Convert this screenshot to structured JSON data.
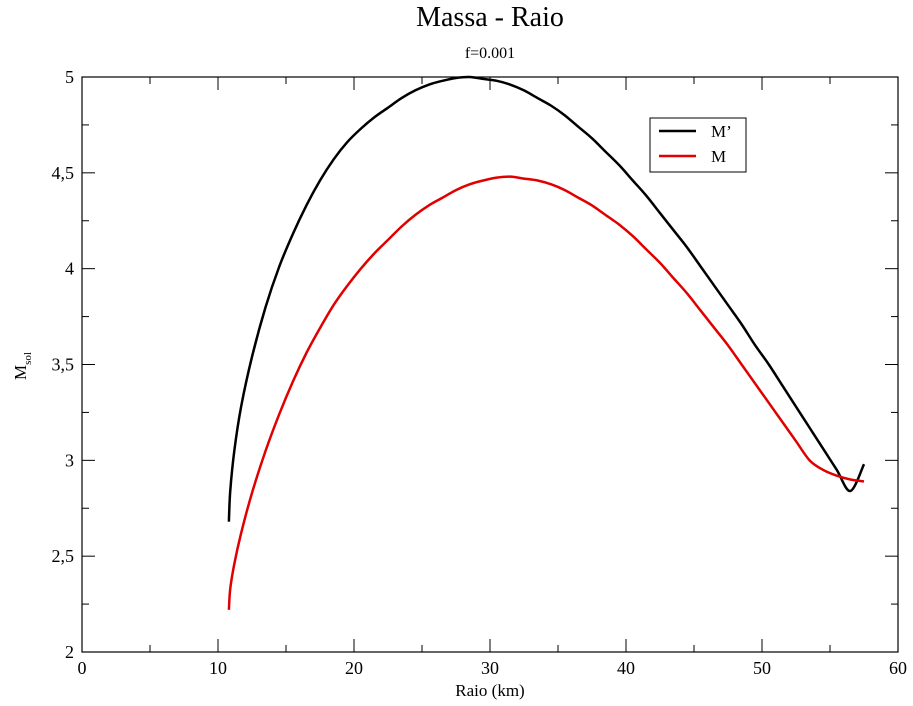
{
  "chart_data": {
    "type": "line",
    "title": "Massa - Raio",
    "subtitle": "f=0.001",
    "xlabel": "Raio (km)",
    "ylabel_main": "M",
    "ylabel_sub": "sol",
    "xlim": [
      0,
      60
    ],
    "ylim": [
      2,
      5
    ],
    "x_ticks": [
      0,
      10,
      20,
      30,
      40,
      50,
      60
    ],
    "x_tick_labels": [
      "0",
      "10",
      "20",
      "30",
      "40",
      "50",
      "60"
    ],
    "y_ticks": [
      2,
      2.5,
      3,
      3.5,
      4,
      4.5,
      5
    ],
    "y_tick_labels": [
      "2",
      "2,5",
      "3",
      "3,5",
      "4",
      "4,5",
      "5"
    ],
    "grid": false,
    "legend_position": "top-right",
    "series": [
      {
        "name": "M’",
        "color": "#000000",
        "x": [
          10.8,
          10.9,
          11.2,
          11.7,
          12.5,
          13.5,
          14.5,
          15.5,
          16.5,
          17.5,
          18.5,
          19.5,
          20.5,
          21.5,
          22.5,
          23.5,
          24.5,
          25.5,
          26.5,
          27.5,
          28.5,
          29.5,
          30.5,
          31.5,
          32.5,
          33.5,
          34.5,
          35.5,
          36.5,
          37.5,
          38.5,
          39.5,
          40.5,
          41.5,
          42.5,
          43.5,
          44.5,
          45.5,
          46.5,
          47.5,
          48.5,
          49.5,
          50.5,
          51.5,
          52.5,
          53.5,
          54.5,
          55.5,
          56.5,
          57.5
        ],
        "y": [
          2.68,
          2.84,
          3.05,
          3.28,
          3.54,
          3.8,
          4.01,
          4.18,
          4.33,
          4.46,
          4.57,
          4.66,
          4.73,
          4.79,
          4.84,
          4.89,
          4.93,
          4.96,
          4.98,
          4.995,
          5.0,
          4.99,
          4.98,
          4.96,
          4.93,
          4.89,
          4.85,
          4.8,
          4.74,
          4.68,
          4.61,
          4.54,
          4.46,
          4.38,
          4.29,
          4.2,
          4.11,
          4.01,
          3.91,
          3.81,
          3.71,
          3.6,
          3.5,
          3.39,
          3.28,
          3.17,
          3.06,
          2.95,
          2.84,
          2.98
        ]
      },
      {
        "name": "M",
        "color": "#e00000",
        "x": [
          10.8,
          10.9,
          11.2,
          11.7,
          12.5,
          13.5,
          14.5,
          15.5,
          16.5,
          17.5,
          18.5,
          19.5,
          20.5,
          21.5,
          22.5,
          23.5,
          24.5,
          25.5,
          26.5,
          27.5,
          28.5,
          29.5,
          30.5,
          31.5,
          32.5,
          33.5,
          34.5,
          35.5,
          36.5,
          37.5,
          38.5,
          39.5,
          40.5,
          41.5,
          42.5,
          43.5,
          44.5,
          45.5,
          46.5,
          47.5,
          48.5,
          49.5,
          50.5,
          51.5,
          52.5,
          53.5,
          54.5,
          55.5,
          56.5,
          57.5
        ],
        "y": [
          2.22,
          2.33,
          2.46,
          2.62,
          2.83,
          3.05,
          3.24,
          3.41,
          3.56,
          3.69,
          3.81,
          3.91,
          4.0,
          4.08,
          4.15,
          4.22,
          4.28,
          4.33,
          4.37,
          4.41,
          4.44,
          4.46,
          4.475,
          4.48,
          4.47,
          4.46,
          4.44,
          4.41,
          4.37,
          4.33,
          4.28,
          4.23,
          4.17,
          4.1,
          4.03,
          3.95,
          3.87,
          3.78,
          3.69,
          3.6,
          3.5,
          3.4,
          3.3,
          3.2,
          3.1,
          3.0,
          2.95,
          2.92,
          2.9,
          2.89
        ]
      }
    ]
  }
}
